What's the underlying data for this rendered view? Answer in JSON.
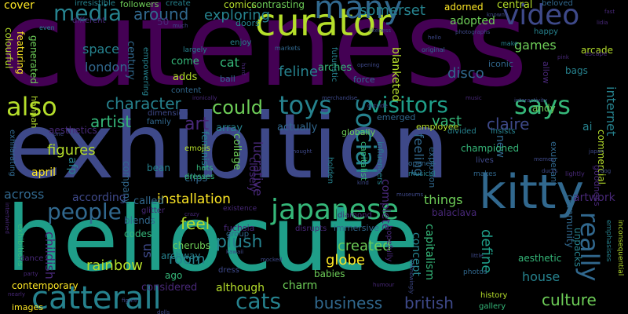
{
  "palette": {
    "purple": "#440154",
    "indigo": "#482878",
    "blue_violet": "#3e4989",
    "blue": "#31688e",
    "teal": "#26828e",
    "green_teal": "#1f9e89",
    "green": "#35b779",
    "lime": "#6ece58",
    "yellow_green": "#b5de2b",
    "yellow": "#fde725"
  },
  "words": [
    {
      "text": "cuteness",
      "color": "#440154"
    },
    {
      "text": "exhibition",
      "color": "#3e4989"
    },
    {
      "text": "hellocute",
      "color": "#1f9e89"
    },
    {
      "text": "kitty",
      "color": "#31688e"
    },
    {
      "text": "curator",
      "color": "#b5de2b"
    },
    {
      "text": "japanese",
      "color": "#35b779"
    },
    {
      "text": "catterall",
      "color": "#26828e"
    },
    {
      "text": "social",
      "color": "#26828e"
    },
    {
      "text": "many",
      "color": "#31688e"
    },
    {
      "text": "video",
      "color": "#3e4989"
    },
    {
      "text": "people",
      "color": "#31688e"
    },
    {
      "text": "toys",
      "color": "#26828e"
    },
    {
      "text": "visitors",
      "color": "#1f9e89"
    },
    {
      "text": "says",
      "color": "#35b779"
    },
    {
      "text": "cats",
      "color": "#26828e"
    },
    {
      "text": "really",
      "color": "#31688e"
    },
    {
      "text": "also",
      "color": "#b5de2b"
    },
    {
      "text": "media",
      "color": "#26828e"
    },
    {
      "text": "culture",
      "color": "#6ece58"
    },
    {
      "text": "business",
      "color": "#31688e"
    },
    {
      "text": "british",
      "color": "#3e4989"
    },
    {
      "text": "could",
      "color": "#6ece58"
    },
    {
      "text": "art",
      "color": "#482878"
    },
    {
      "text": "plush",
      "color": "#26828e"
    },
    {
      "text": "rainbow",
      "color": "#b5de2b"
    },
    {
      "text": "define",
      "color": "#1f9e89"
    },
    {
      "text": "created",
      "color": "#6ece58"
    },
    {
      "text": "installation",
      "color": "#fde725"
    },
    {
      "text": "feel",
      "color": "#b5de2b"
    },
    {
      "text": "globe",
      "color": "#fde725"
    },
    {
      "text": "around",
      "color": "#31688e"
    },
    {
      "text": "exploring",
      "color": "#26828e"
    },
    {
      "text": "somerset",
      "color": "#26828e"
    },
    {
      "text": "character",
      "color": "#26828e"
    },
    {
      "text": "artist",
      "color": "#35b779"
    },
    {
      "text": "figures",
      "color": "#b5de2b"
    },
    {
      "text": "house",
      "color": "#26828e"
    },
    {
      "text": "internet",
      "color": "#26828e"
    },
    {
      "text": "lucrative",
      "color": "#482878"
    },
    {
      "text": "feline",
      "color": "#26828e"
    },
    {
      "text": "disco",
      "color": "#31688e"
    },
    {
      "text": "vast",
      "color": "#35b779"
    },
    {
      "text": "claire",
      "color": "#3e4989"
    },
    {
      "text": "feeling",
      "color": "#31688e"
    },
    {
      "text": "things",
      "color": "#6ece58"
    },
    {
      "text": "london",
      "color": "#31688e"
    },
    {
      "text": "space",
      "color": "#26828e"
    },
    {
      "text": "games",
      "color": "#6ece58"
    },
    {
      "text": "cat",
      "color": "#35b779"
    },
    {
      "text": "april",
      "color": "#fde725"
    },
    {
      "text": "across",
      "color": "#31688e"
    },
    {
      "text": "room",
      "color": "#26828e"
    },
    {
      "text": "new",
      "color": "#31688e"
    },
    {
      "text": "ai",
      "color": "#26828e"
    },
    {
      "text": "adopted",
      "color": "#6ece58"
    },
    {
      "text": "central",
      "color": "#b5de2b"
    },
    {
      "text": "charm",
      "color": "#6ece58"
    },
    {
      "text": "although",
      "color": "#b5de2b"
    },
    {
      "text": "contemporary",
      "color": "#fde725"
    },
    {
      "text": "bean",
      "color": "#26828e"
    },
    {
      "text": "capitalism",
      "color": "#35b779"
    },
    {
      "text": "concept",
      "color": "#26828e"
    },
    {
      "text": "blanketed",
      "color": "#b5de2b"
    },
    {
      "text": "arcade",
      "color": "#b5de2b"
    },
    {
      "text": "bags",
      "color": "#26828e"
    },
    {
      "text": "andy",
      "color": "#6ece58"
    },
    {
      "text": "aesthetic",
      "color": "#35b779"
    },
    {
      "text": "artwork",
      "color": "#482878"
    },
    {
      "text": "unpacks",
      "color": "#26828e"
    },
    {
      "text": "community",
      "color": "#31688e"
    },
    {
      "text": "babies",
      "color": "#6ece58"
    },
    {
      "text": "considered",
      "color": "#482878"
    },
    {
      "text": "ago",
      "color": "#35b779"
    },
    {
      "text": "us",
      "color": "#3e4989"
    },
    {
      "text": "childish",
      "color": "#482878"
    },
    {
      "text": "afp",
      "color": "#26828e"
    },
    {
      "text": "according",
      "color": "#3e4989"
    },
    {
      "text": "called",
      "color": "#31688e"
    },
    {
      "text": "cherubs",
      "color": "#6ece58"
    },
    {
      "text": "archway",
      "color": "#26828e"
    },
    {
      "text": "blends",
      "color": "#31688e"
    },
    {
      "text": "codes",
      "color": "#35b779"
    },
    {
      "text": "company",
      "color": "#31688e"
    },
    {
      "text": "clips",
      "color": "#31688e"
    },
    {
      "text": "array",
      "color": "#26828e"
    },
    {
      "text": "collage",
      "color": "#6ece58"
    },
    {
      "text": "closely",
      "color": "#482878"
    },
    {
      "text": "actually",
      "color": "#31688e"
    },
    {
      "text": "emerged",
      "color": "#31688e"
    },
    {
      "text": "employee",
      "color": "#b5de2b"
    },
    {
      "text": "championed",
      "color": "#35b779"
    },
    {
      "text": "exuberant",
      "color": "#31688e"
    },
    {
      "text": "commercial",
      "color": "#b5de2b"
    },
    {
      "text": "emphasises",
      "color": "#26828e"
    },
    {
      "text": "inconsequential",
      "color": "#b5de2b"
    },
    {
      "text": "iconic",
      "color": "#31688e"
    },
    {
      "text": "allow",
      "color": "#482878"
    },
    {
      "text": "happy",
      "color": "#26828e"
    },
    {
      "text": "beloved",
      "color": "#31688e"
    },
    {
      "text": "adorned",
      "color": "#fde725"
    },
    {
      "text": "arches",
      "color": "#35b779"
    },
    {
      "text": "comics",
      "color": "#b5de2b"
    },
    {
      "text": "contrasting",
      "color": "#6ece58"
    },
    {
      "text": "doors",
      "color": "#26828e"
    },
    {
      "text": "create",
      "color": "#26828e"
    },
    {
      "text": "followers",
      "color": "#6ece58"
    },
    {
      "text": "irresistible",
      "color": "#26828e"
    },
    {
      "text": "cover",
      "color": "#fde725"
    },
    {
      "text": "colourful",
      "color": "#b5de2b"
    },
    {
      "text": "featuring",
      "color": "#fde725"
    },
    {
      "text": "generated",
      "color": "#6ece58"
    },
    {
      "text": "hannah",
      "color": "#b5de2b"
    },
    {
      "text": "aesthetics",
      "color": "#482878"
    },
    {
      "text": "exhilarating",
      "color": "#31688e"
    },
    {
      "text": "exhibitions",
      "color": "#35b779"
    },
    {
      "text": "dance",
      "color": "#482878"
    },
    {
      "text": "images",
      "color": "#fde725"
    },
    {
      "text": "century",
      "color": "#31688e"
    },
    {
      "text": "empowering",
      "color": "#26828e"
    },
    {
      "text": "come",
      "color": "#35b779"
    },
    {
      "text": "adds",
      "color": "#b5de2b"
    },
    {
      "text": "content",
      "color": "#31688e"
    },
    {
      "text": "dimension",
      "color": "#3e4989"
    },
    {
      "text": "family",
      "color": "#31688e"
    },
    {
      "text": "feminist",
      "color": "#26828e"
    },
    {
      "text": "emojis",
      "color": "#b5de2b"
    },
    {
      "text": "hats",
      "color": "#35b779"
    },
    {
      "text": "dresses",
      "color": "#35b779"
    },
    {
      "text": "glitter",
      "color": "#482878"
    },
    {
      "text": "fuchsia",
      "color": "#482878"
    },
    {
      "text": "group",
      "color": "#31688e"
    },
    {
      "text": "dress",
      "color": "#3e4989"
    },
    {
      "text": "ball",
      "color": "#31688e"
    },
    {
      "text": "enjoy",
      "color": "#26828e"
    },
    {
      "text": "largely",
      "color": "#26828e"
    },
    {
      "text": "markets",
      "color": "#31688e"
    },
    {
      "text": "original",
      "color": "#31688e"
    },
    {
      "text": "make",
      "color": "#26828e"
    },
    {
      "text": "force",
      "color": "#31688e"
    },
    {
      "text": "explosion",
      "color": "#31688e"
    },
    {
      "text": "capitalist",
      "color": "#35b779"
    },
    {
      "text": "futuristic",
      "color": "#26828e"
    },
    {
      "text": "globally",
      "color": "#6ece58"
    },
    {
      "text": "divided",
      "color": "#26828e"
    },
    {
      "text": "insists",
      "color": "#26828e"
    },
    {
      "text": "lives",
      "color": "#3e4989"
    },
    {
      "text": "makes",
      "color": "#31688e"
    },
    {
      "text": "influencers",
      "color": "#26828e"
    },
    {
      "text": "holden",
      "color": "#26828e"
    },
    {
      "text": "complete",
      "color": "#482878"
    },
    {
      "text": "opened",
      "color": "#31688e"
    },
    {
      "text": "musical",
      "color": "#26828e"
    },
    {
      "text": "diamond",
      "color": "#482878"
    },
    {
      "text": "immersive",
      "color": "#31688e"
    },
    {
      "text": "hopefully",
      "color": "#482878"
    },
    {
      "text": "history",
      "color": "#b5de2b"
    },
    {
      "text": "gallery",
      "color": "#35b779"
    },
    {
      "text": "photos",
      "color": "#31688e"
    },
    {
      "text": "disrupts",
      "color": "#482878"
    },
    {
      "text": "mocked",
      "color": "#3e4989"
    },
    {
      "text": "kawaii",
      "color": "#3e4989"
    },
    {
      "text": "balaclava",
      "color": "#482878"
    },
    {
      "text": "party",
      "color": "#482878"
    },
    {
      "text": "nearly",
      "color": "#482878"
    },
    {
      "text": "goodness",
      "color": "#482878"
    },
    {
      "text": "memes",
      "color": "#3e4989"
    },
    {
      "text": "japan",
      "color": "#3e4989"
    },
    {
      "text": "ironically",
      "color": "#482878"
    },
    {
      "text": "merchandise",
      "color": "#3e4989"
    },
    {
      "text": "outside",
      "color": "#3e4989"
    },
    {
      "text": "music",
      "color": "#482878"
    },
    {
      "text": "interactivity",
      "color": "#3e4989"
    },
    {
      "text": "intertwined",
      "color": "#482878"
    },
    {
      "text": "much",
      "color": "#3e4989"
    },
    {
      "text": "50",
      "color": "#482878"
    },
    {
      "text": "different",
      "color": "#482878"
    },
    {
      "text": "likeness",
      "color": "#3e4989"
    },
    {
      "text": "photographs",
      "color": "#3e4989"
    },
    {
      "text": "known",
      "color": "#3e4989"
    },
    {
      "text": "escape",
      "color": "#482878"
    },
    {
      "text": "lidia",
      "color": "#482878"
    },
    {
      "text": "opening",
      "color": "#3e4989"
    },
    {
      "text": "one",
      "color": "#3e4989"
    },
    {
      "text": "museums",
      "color": "#3e4989"
    },
    {
      "text": "kind",
      "color": "#3e4989"
    },
    {
      "text": "existence",
      "color": "#482878"
    },
    {
      "text": "dog",
      "color": "#3e4989"
    },
    {
      "text": "ducks",
      "color": "#3e4989"
    },
    {
      "text": "even",
      "color": "#26828e"
    },
    {
      "text": "lightly",
      "color": "#482878"
    },
    {
      "text": "hard",
      "color": "#482878"
    },
    {
      "text": "fast",
      "color": "#482878"
    },
    {
      "text": "pink",
      "color": "#482878"
    },
    {
      "text": "thought",
      "color": "#3e4989"
    },
    {
      "text": "crazy",
      "color": "#482878"
    },
    {
      "text": "little",
      "color": "#3e4989"
    },
    {
      "text": "unknowingly",
      "color": "#3e4989"
    },
    {
      "text": "dolls",
      "color": "#3e4989"
    },
    {
      "text": "figure",
      "color": "#3e4989"
    },
    {
      "text": "humour",
      "color": "#482878"
    },
    {
      "text": "hello",
      "color": "#3e4989"
    }
  ]
}
